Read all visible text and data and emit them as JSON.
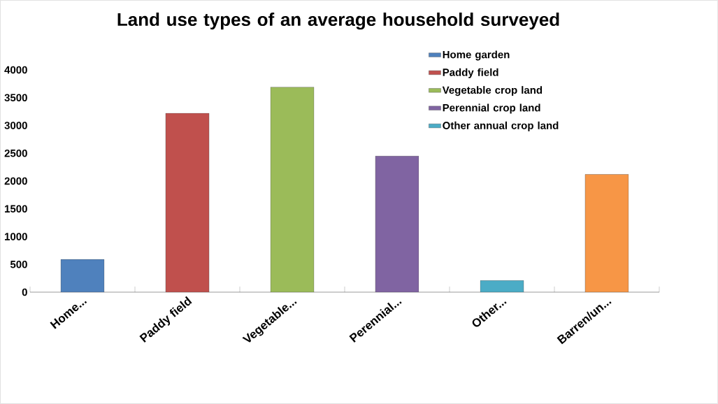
{
  "chart_data": {
    "type": "bar",
    "title": "Land use types of an average household surveyed",
    "categories": [
      "Home...",
      "Paddy field",
      "Vegetable...",
      "Perennial...",
      "Other...",
      "Barren/un..."
    ],
    "series": [
      {
        "name": "Home garden",
        "color": "#4f81bd",
        "values": [
          590,
          null,
          null,
          null,
          null,
          null
        ]
      },
      {
        "name": "Paddy field",
        "color": "#c0504d",
        "values": [
          null,
          3220,
          null,
          null,
          null,
          null
        ]
      },
      {
        "name": "Vegetable crop land",
        "color": "#9bbb59",
        "values": [
          null,
          null,
          3690,
          null,
          null,
          null
        ]
      },
      {
        "name": "Perennial crop land",
        "color": "#8064a2",
        "values": [
          null,
          null,
          null,
          2450,
          null,
          null
        ]
      },
      {
        "name": "Other annual crop land",
        "color": "#4bacc6",
        "values": [
          null,
          null,
          null,
          null,
          210,
          null
        ]
      },
      {
        "color": "#f79646",
        "values": [
          null,
          null,
          null,
          null,
          null,
          2120
        ]
      }
    ],
    "ylim": [
      0,
      4000
    ],
    "yticks": [
      0,
      500,
      1000,
      1500,
      2000,
      2500,
      3000,
      3500,
      4000
    ],
    "grid": false,
    "legend": "top right"
  }
}
